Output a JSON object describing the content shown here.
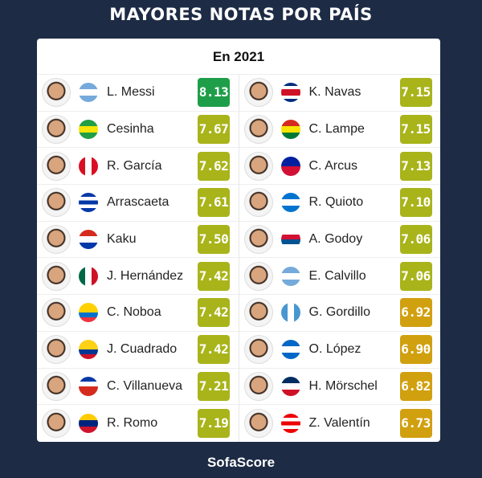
{
  "title": "MAYORES NOTAS POR PAÍS",
  "subtitle": "En 2021",
  "brand": "SofaScore",
  "colors": {
    "green": "#1f9e49",
    "olive": "#a8b41a",
    "gold": "#d1a00f",
    "background": "#1d2b45"
  },
  "left": [
    {
      "name": "L. Messi",
      "rating": "8.13",
      "tier": "green",
      "flag": [
        "#75aadb",
        "#ffffff",
        "#75aadb"
      ]
    },
    {
      "name": "Cesinha",
      "rating": "7.67",
      "tier": "olive",
      "flag": [
        "#229e45",
        "#f8e509",
        "#229e45"
      ]
    },
    {
      "name": "R. García",
      "rating": "7.62",
      "tier": "olive",
      "flag": [
        "#d91023",
        "#ffffff",
        "#d91023"
      ],
      "vertical": true
    },
    {
      "name": "Arrascaeta",
      "rating": "7.61",
      "tier": "olive",
      "flag": [
        "#0038a8",
        "#ffffff",
        "#0038a8",
        "#ffffff",
        "#0038a8"
      ]
    },
    {
      "name": "Kaku",
      "rating": "7.50",
      "tier": "olive",
      "flag": [
        "#d52b1e",
        "#ffffff",
        "#0038a8"
      ]
    },
    {
      "name": "J. Hernández",
      "rating": "7.42",
      "tier": "olive",
      "flag": [
        "#006847",
        "#ffffff",
        "#ce1126"
      ],
      "vertical": true
    },
    {
      "name": "C. Noboa",
      "rating": "7.42",
      "tier": "olive",
      "flag": [
        "#ffd100",
        "#ffd100",
        "#0072ce",
        "#ef3340"
      ]
    },
    {
      "name": "J. Cuadrado",
      "rating": "7.42",
      "tier": "olive",
      "flag": [
        "#fcd116",
        "#fcd116",
        "#003893",
        "#ce1126"
      ]
    },
    {
      "name": "C. Villanueva",
      "rating": "7.21",
      "tier": "olive",
      "flag": [
        "#0039a6",
        "#ffffff",
        "#d52b1e",
        "#d52b1e"
      ]
    },
    {
      "name": "R. Romo",
      "rating": "7.19",
      "tier": "olive",
      "flag": [
        "#ffcc00",
        "#00247d",
        "#cf142b"
      ]
    }
  ],
  "right": [
    {
      "name": "K. Navas",
      "rating": "7.15",
      "tier": "olive",
      "flag": [
        "#002b7f",
        "#ffffff",
        "#ce1126",
        "#ce1126",
        "#ffffff",
        "#002b7f"
      ]
    },
    {
      "name": "C. Lampe",
      "rating": "7.15",
      "tier": "olive",
      "flag": [
        "#d52b1e",
        "#f9e300",
        "#007934"
      ]
    },
    {
      "name": "C. Arcus",
      "rating": "7.13",
      "tier": "olive",
      "flag": [
        "#00209f",
        "#d21034"
      ]
    },
    {
      "name": "R. Quioto",
      "rating": "7.10",
      "tier": "olive",
      "flag": [
        "#0073cf",
        "#ffffff",
        "#0073cf"
      ]
    },
    {
      "name": "A. Godoy",
      "rating": "7.06",
      "tier": "olive",
      "flag": [
        "#ffffff",
        "#d21034",
        "#005293",
        "#ffffff"
      ]
    },
    {
      "name": "E. Calvillo",
      "rating": "7.06",
      "tier": "olive",
      "flag": [
        "#75aadb",
        "#ffffff",
        "#75aadb"
      ]
    },
    {
      "name": "G. Gordillo",
      "rating": "6.92",
      "tier": "gold",
      "flag": [
        "#4997d0",
        "#ffffff",
        "#4997d0"
      ],
      "vertical": true
    },
    {
      "name": "O. López",
      "rating": "6.90",
      "tier": "gold",
      "flag": [
        "#0067c6",
        "#ffffff",
        "#0067c6"
      ]
    },
    {
      "name": "H. Mörschel",
      "rating": "6.82",
      "tier": "gold",
      "flag": [
        "#002d62",
        "#ffffff",
        "#ce1126"
      ]
    },
    {
      "name": "Z. Valentín",
      "rating": "6.73",
      "tier": "gold",
      "flag": [
        "#ed0000",
        "#ffffff",
        "#ed0000",
        "#ffffff",
        "#ed0000"
      ]
    }
  ]
}
